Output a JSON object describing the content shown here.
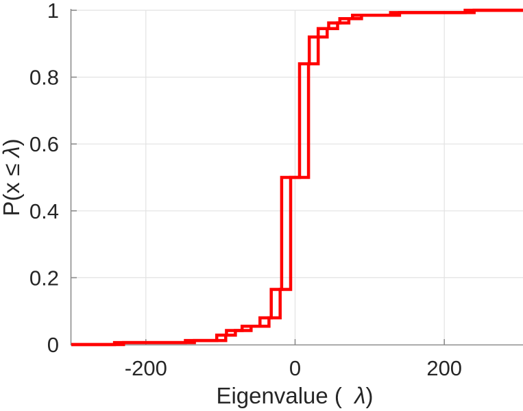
{
  "chart_data": {
    "type": "line",
    "subtype": "ecdf-step",
    "title": "",
    "xlabel": "Eigenvalue ( λ)",
    "ylabel": "P(x ≤ λ)",
    "xlabel_parts": {
      "prefix": "Eigenvalue (  ",
      "symbol": "λ",
      "suffix": ")"
    },
    "ylabel_parts": {
      "prefix": "P(x ≤ ",
      "symbol": "λ",
      "suffix": ")"
    },
    "xlim": [
      -300,
      300
    ],
    "ylim": [
      0,
      1
    ],
    "grid": true,
    "legend": false,
    "xticks": [
      {
        "value": -200,
        "label": "-200"
      },
      {
        "value": 0,
        "label": "0"
      },
      {
        "value": 200,
        "label": "200"
      }
    ],
    "yticks": [
      {
        "value": 0,
        "label": "0"
      },
      {
        "value": 0.2,
        "label": "0.2"
      },
      {
        "value": 0.4,
        "label": "0.4"
      },
      {
        "value": 0.6,
        "label": "0.6"
      },
      {
        "value": 0.8,
        "label": "0.8"
      },
      {
        "value": 1,
        "label": "1"
      }
    ],
    "series": [
      {
        "name": "ecdf-curve-1",
        "color": "#ff0000",
        "line_width": 4.5,
        "start": [
          -300,
          0
        ],
        "steps": [
          [
            -242,
            0.006
          ],
          [
            -147,
            0.012
          ],
          [
            -105,
            0.028
          ],
          [
            -92,
            0.042
          ],
          [
            -71,
            0.055
          ],
          [
            -47,
            0.08
          ],
          [
            -32,
            0.165
          ],
          [
            -18,
            0.5
          ],
          [
            6,
            0.84
          ],
          [
            19,
            0.92
          ],
          [
            31,
            0.945
          ],
          [
            45,
            0.962
          ],
          [
            60,
            0.975
          ],
          [
            77,
            0.985
          ],
          [
            128,
            0.993
          ],
          [
            228,
            1.0
          ]
        ]
      },
      {
        "name": "ecdf-curve-2",
        "color": "#ff0000",
        "line_width": 4.5,
        "start": [
          -300,
          0
        ],
        "steps": [
          [
            -230,
            0.006
          ],
          [
            -135,
            0.012
          ],
          [
            -93,
            0.028
          ],
          [
            -80,
            0.042
          ],
          [
            -59,
            0.055
          ],
          [
            -35,
            0.08
          ],
          [
            -20,
            0.165
          ],
          [
            -6,
            0.5
          ],
          [
            18,
            0.84
          ],
          [
            31,
            0.92
          ],
          [
            43,
            0.945
          ],
          [
            57,
            0.962
          ],
          [
            72,
            0.975
          ],
          [
            89,
            0.985
          ],
          [
            140,
            0.993
          ],
          [
            240,
            1.0
          ]
        ]
      }
    ]
  },
  "colors": {
    "background": "#ffffff",
    "line": "#ff0000",
    "grid": "#e2e2e2",
    "spine": "#8c8c8c",
    "tick": "#8c8c8c",
    "text": "#262626"
  }
}
